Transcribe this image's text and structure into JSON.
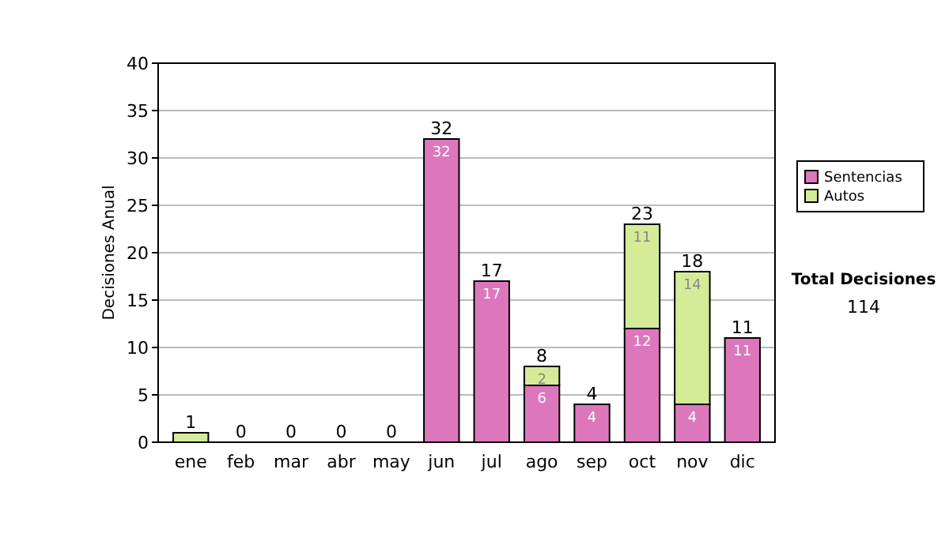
{
  "chart_data": {
    "type": "bar",
    "stacked": true,
    "ylabel": "Decisiones Anual",
    "categories": [
      "ene",
      "feb",
      "mar",
      "abr",
      "may",
      "jun",
      "jul",
      "ago",
      "sep",
      "oct",
      "nov",
      "dic"
    ],
    "series": [
      {
        "name": "Sentencias",
        "color": "#dd77bb",
        "values": [
          0,
          0,
          0,
          0,
          0,
          32,
          17,
          6,
          4,
          12,
          4,
          11
        ],
        "value_labels": [
          null,
          null,
          null,
          null,
          null,
          "32",
          "17",
          "6",
          "4",
          "12",
          "4",
          "11"
        ]
      },
      {
        "name": "Autos",
        "color": "#d4ec98",
        "values": [
          1,
          0,
          0,
          0,
          0,
          0,
          0,
          2,
          0,
          11,
          14,
          0
        ],
        "value_labels": [
          null,
          null,
          null,
          null,
          null,
          null,
          null,
          "2",
          null,
          "11",
          "14",
          null
        ]
      }
    ],
    "totals": [
      "1",
      "0",
      "0",
      "0",
      "0",
      "32",
      "17",
      "8",
      "4",
      "23",
      "18",
      "11"
    ],
    "ylim": [
      0,
      40
    ],
    "yticks": [
      0,
      5,
      10,
      15,
      20,
      25,
      30,
      35,
      40
    ],
    "grid": "y",
    "legend": "right",
    "annotations": [
      "Total Decisiones",
      "114"
    ]
  }
}
